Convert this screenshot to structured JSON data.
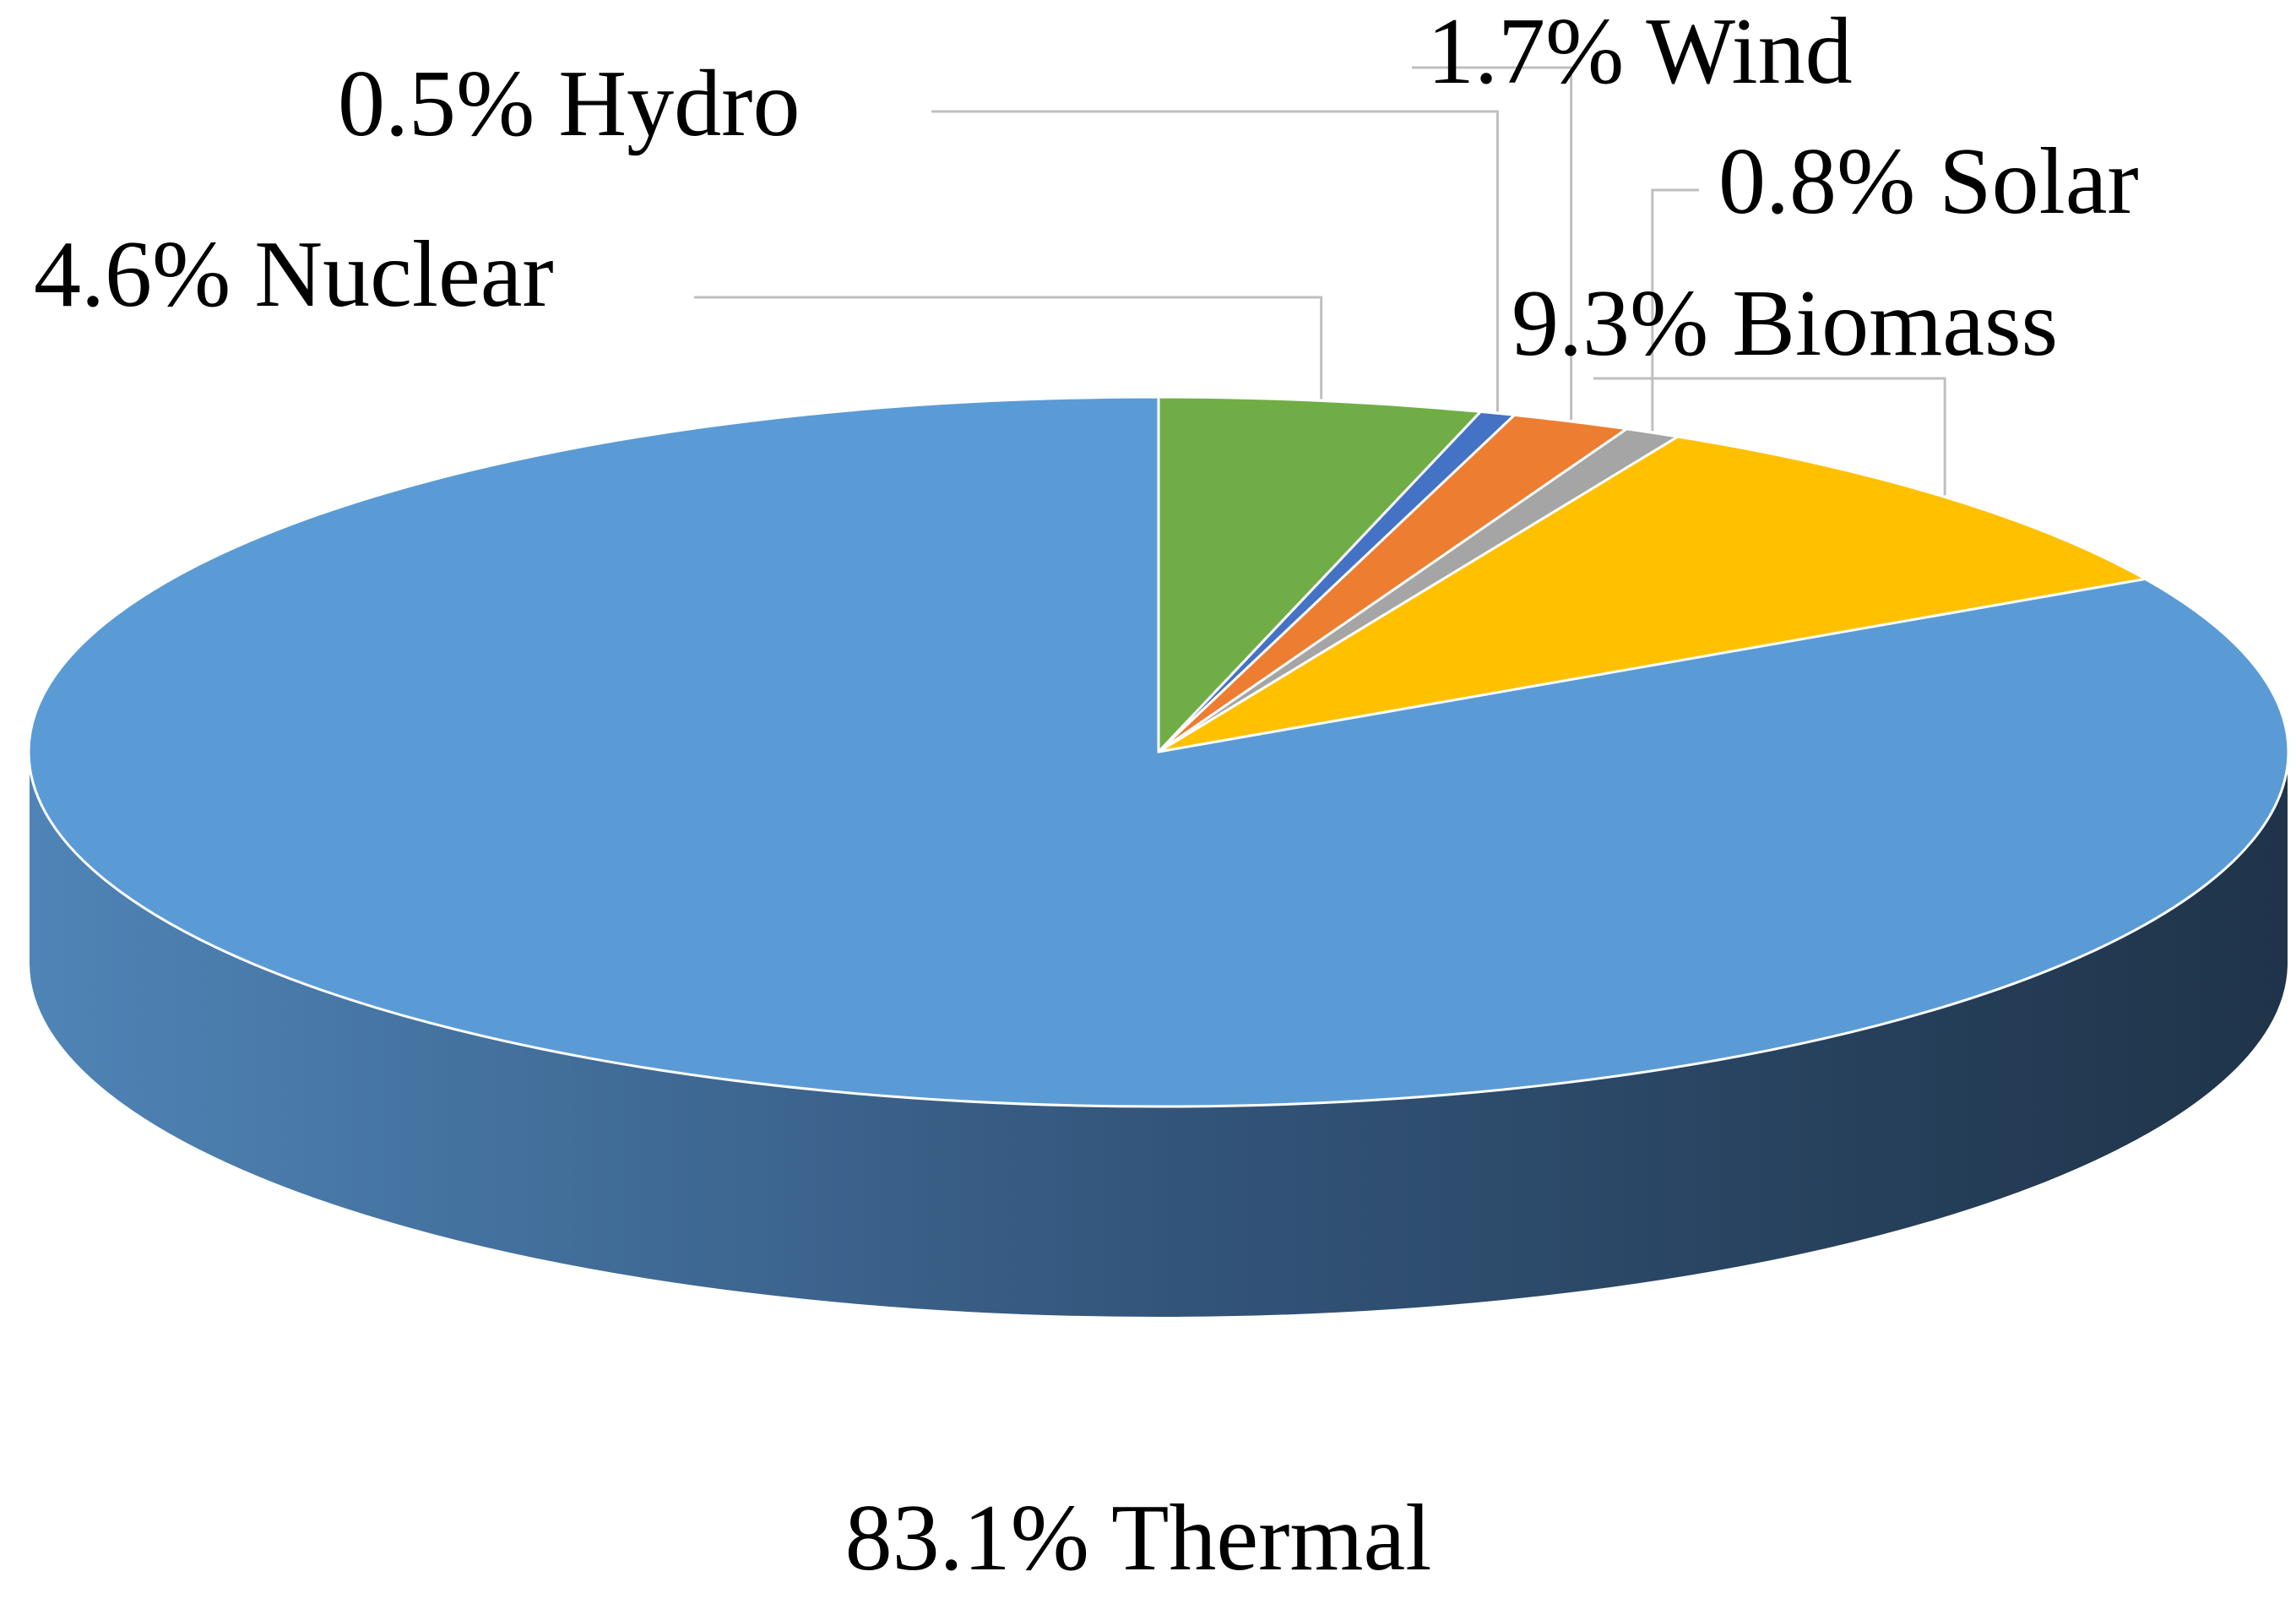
{
  "chart_data": {
    "type": "pie",
    "style": "3d",
    "labels": [
      "Thermal",
      "Nuclear",
      "Hydro",
      "Wind",
      "Solar",
      "Biomass"
    ],
    "values": [
      83.1,
      4.6,
      0.5,
      1.7,
      0.8,
      9.3
    ],
    "value_suffix": "%",
    "colors": [
      "#5B9BD5",
      "#70AD47",
      "#4472C4",
      "#ED7D31",
      "#A5A5A5",
      "#FFC000"
    ],
    "data_labels": [
      "83.1% Thermal",
      "4.6% Nuclear",
      "0.5% Hydro",
      "1.7% Wind",
      "0.8% Solar",
      "9.3% Biomass"
    ],
    "legend": "none",
    "title": ""
  }
}
